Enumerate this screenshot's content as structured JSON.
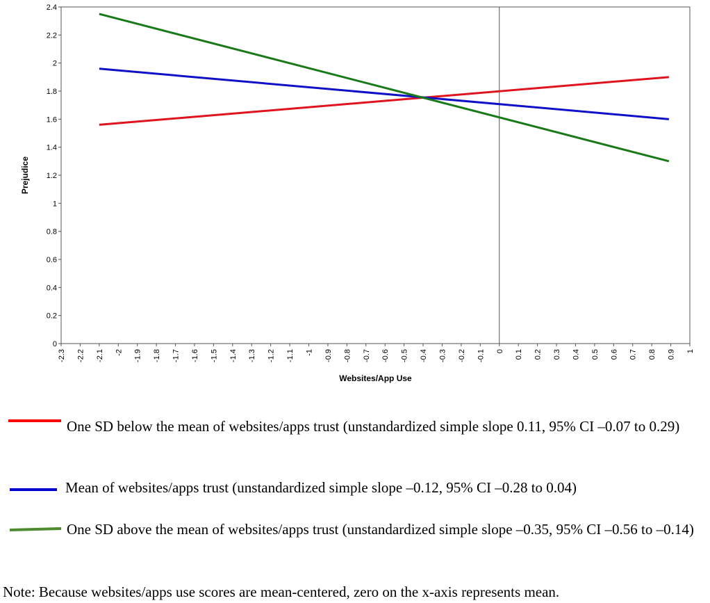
{
  "chart_data": {
    "type": "line",
    "xlabel": "Websites/App Use",
    "ylabel": "Prejudice",
    "xlim": [
      -2.3,
      1
    ],
    "ylim": [
      0,
      2.4
    ],
    "x_ticks": [
      "-2.3",
      "-2.2",
      "-2.1",
      "-2",
      "-1.9",
      "-1.8",
      "-1.7",
      "-1.6",
      "-1.5",
      "-1.4",
      "-1.3",
      "-1.2",
      "-1.1",
      "-1",
      "-0.9",
      "-0.8",
      "-0.7",
      "-0.6",
      "-0.5",
      "-0.4",
      "-0.3",
      "-0.2",
      "-0.1",
      "0",
      "0.1",
      "0.2",
      "0.3",
      "0.4",
      "0.5",
      "0.6",
      "0.7",
      "0.8",
      "0.9",
      "1"
    ],
    "y_ticks": [
      "0",
      "0.2",
      "0.4",
      "0.6",
      "0.8",
      "1",
      "1.2",
      "1.4",
      "1.6",
      "1.8",
      "2",
      "2.2",
      "2.4"
    ],
    "reference_line_x": 0,
    "series": [
      {
        "color": "#e0141e",
        "x": [
          -2.1,
          0.89
        ],
        "y": [
          1.56,
          1.9
        ]
      },
      {
        "color": "#1010c8",
        "x": [
          -2.1,
          0.89
        ],
        "y": [
          1.96,
          1.6
        ]
      },
      {
        "color": "#1a7a1a",
        "x": [
          -2.1,
          0.89
        ],
        "y": [
          2.35,
          1.3
        ]
      }
    ]
  },
  "legend": [
    {
      "color": "#ff0000",
      "text": "One SD below the mean of websites/apps trust (unstandardized simple slope 0.11, 95% CI –0.07 to 0.29)"
    },
    {
      "color": "#0000cc",
      "text": "Mean of websites/apps trust (unstandardized simple slope –0.12, 95% CI –0.28 to 0.04)"
    },
    {
      "color": "#4e8a2e",
      "text": "One SD above the mean of websites/apps trust (unstandardized simple slope –0.35, 95% CI –0.56 to –0.14)"
    }
  ],
  "note": "Note: Because websites/apps use scores are mean-centered, zero on the x-axis represents mean."
}
